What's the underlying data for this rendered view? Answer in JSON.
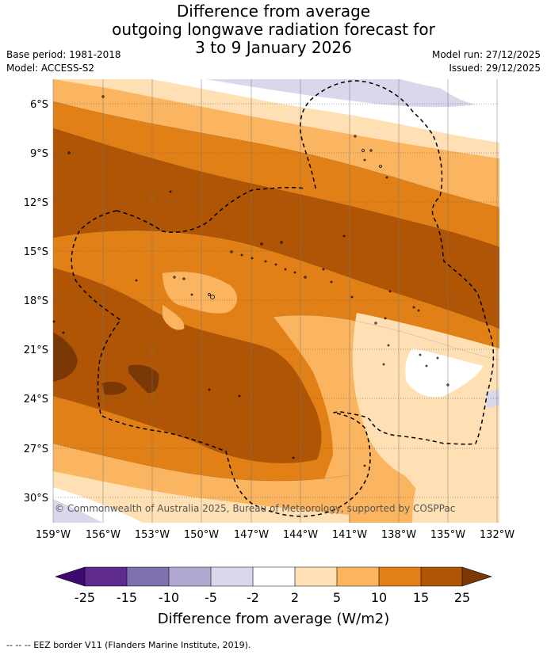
{
  "title": {
    "line1": "Difference from average",
    "line2": "outgoing longwave radiation forecast for",
    "line3": "3 to 9 January 2026"
  },
  "meta": {
    "base_period": "Base period: 1981-2018",
    "model": "Model: ACCESS-S2",
    "model_run": "Model run: 27/12/2025",
    "issued": "Issued: 29/12/2025"
  },
  "map": {
    "lat_labels": [
      "6°S",
      "9°S",
      "12°S",
      "15°S",
      "18°S",
      "21°S",
      "24°S",
      "27°S",
      "30°S"
    ],
    "lon_labels": [
      "159°W",
      "156°W",
      "153°W",
      "150°W",
      "147°W",
      "144°W",
      "141°W",
      "138°W",
      "135°W",
      "132°W"
    ],
    "copyright": "© Commonwealth of Australia 2025, Bureau of Meteorology, supported by COSPPac"
  },
  "colorbar": {
    "title": "Difference from average (W/m2)",
    "ticks": [
      "-25",
      "-15",
      "-10",
      "-5",
      "-2",
      "2",
      "5",
      "10",
      "15",
      "25"
    ],
    "colors": [
      "#3f0a6e",
      "#5e2a8c",
      "#7f6fac",
      "#b1a9d2",
      "#d8d7eb",
      "#ffffff",
      "#ffe0b4",
      "#fbb45f",
      "#e08017",
      "#b05505",
      "#7a3807"
    ]
  },
  "footer": {
    "legend": "--  --  -- EEZ border V11 (Flanders Marine Institute, 2019)."
  }
}
